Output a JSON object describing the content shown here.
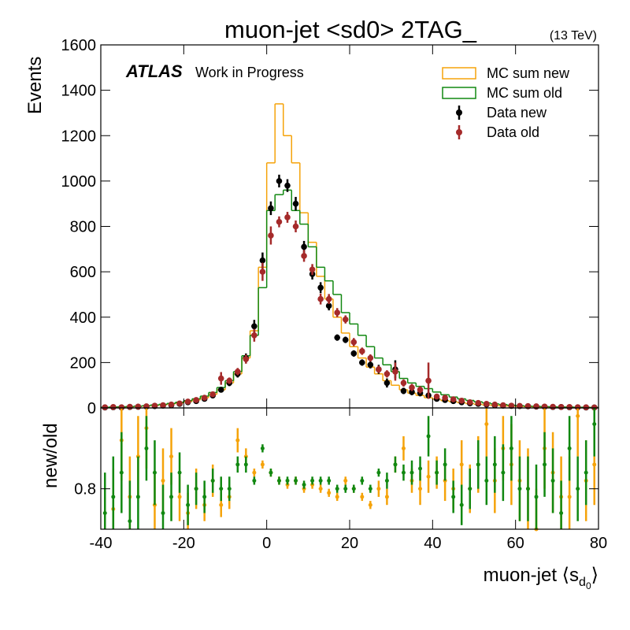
{
  "chart_data": {
    "type": "hist_ratio",
    "title": "muon-jet <sd0> 2TAG_",
    "energy": "(13 TeV)",
    "atlas": "ATLAS",
    "atlas_sub": "Work in Progress",
    "y_label": "Events",
    "ratio_label": "new/old",
    "x_label_parts": [
      "muon-jet ⟨s",
      "d",
      "0",
      "⟩"
    ],
    "bins": [
      -40,
      -38,
      -36,
      -34,
      -32,
      -30,
      -28,
      -26,
      -24,
      -22,
      -20,
      -18,
      -16,
      -14,
      -12,
      -10,
      -8,
      -6,
      -4,
      -2,
      0,
      2,
      4,
      6,
      8,
      10,
      12,
      14,
      16,
      18,
      20,
      22,
      24,
      26,
      28,
      30,
      32,
      34,
      36,
      38,
      40,
      42,
      44,
      46,
      48,
      50,
      52,
      54,
      56,
      58,
      60,
      62,
      64,
      66,
      68,
      70,
      72,
      74,
      76,
      78,
      80
    ],
    "xlim": [
      -40,
      80
    ],
    "xticks": [
      -40,
      -20,
      0,
      20,
      40,
      60,
      80
    ],
    "ylim": [
      0,
      1600
    ],
    "yticks": [
      0,
      200,
      400,
      600,
      800,
      1000,
      1200,
      1400,
      1600
    ],
    "ratio_ylim": [
      0.7,
      1.0
    ],
    "ratio_yticks": [
      0.8
    ],
    "hists": [
      {
        "name": "MC sum new",
        "color": "#f5a30a",
        "values": [
          2,
          3,
          4,
          5,
          7,
          9,
          11,
          14,
          18,
          22,
          28,
          35,
          45,
          60,
          80,
          110,
          150,
          220,
          340,
          620,
          1080,
          1340,
          1200,
          1080,
          860,
          730,
          580,
          480,
          400,
          330,
          270,
          220,
          180,
          150,
          120,
          100,
          80,
          65,
          55,
          45,
          38,
          32,
          27,
          23,
          19,
          16,
          13,
          11,
          9,
          8,
          7,
          6,
          5,
          4,
          4,
          3,
          3,
          2,
          2,
          2
        ]
      },
      {
        "name": "MC sum old",
        "color": "#118811",
        "values": [
          3,
          4,
          5,
          6,
          8,
          10,
          13,
          16,
          20,
          25,
          32,
          40,
          52,
          68,
          90,
          120,
          160,
          230,
          320,
          530,
          870,
          940,
          960,
          870,
          810,
          710,
          620,
          560,
          500,
          420,
          370,
          320,
          270,
          220,
          190,
          160,
          130,
          110,
          95,
          85,
          70,
          58,
          48,
          40,
          33,
          27,
          22,
          18,
          15,
          12,
          10,
          8,
          7,
          6,
          5,
          4,
          4,
          3,
          3,
          2
        ]
      }
    ],
    "points": [
      {
        "name": "Data new",
        "color": "#000000",
        "values": [
          2,
          3,
          2,
          4,
          5,
          6,
          8,
          10,
          12,
          18,
          25,
          30,
          40,
          55,
          80,
          110,
          150,
          220,
          360,
          650,
          880,
          1000,
          980,
          900,
          710,
          590,
          530,
          450,
          310,
          300,
          240,
          200,
          190,
          170,
          110,
          170,
          75,
          70,
          65,
          55,
          40,
          35,
          30,
          25,
          20,
          18,
          15,
          12,
          10,
          9,
          8,
          7,
          6,
          5,
          4,
          4,
          3,
          3,
          2,
          2
        ],
        "errors": [
          2,
          2,
          2,
          2,
          3,
          3,
          4,
          4,
          5,
          6,
          7,
          8,
          9,
          10,
          12,
          14,
          16,
          20,
          28,
          35,
          30,
          28,
          28,
          30,
          26,
          24,
          24,
          20,
          14,
          14,
          14,
          14,
          16,
          20,
          20,
          40,
          14,
          14,
          14,
          14,
          10,
          10,
          9,
          8,
          7,
          7,
          6,
          6,
          5,
          5,
          4,
          4,
          4,
          3,
          3,
          3,
          3,
          2,
          2,
          2
        ]
      },
      {
        "name": "Data old",
        "color": "#a52a2a",
        "values": [
          3,
          4,
          3,
          5,
          6,
          7,
          10,
          12,
          15,
          20,
          28,
          35,
          45,
          60,
          130,
          120,
          160,
          215,
          320,
          600,
          760,
          820,
          840,
          800,
          670,
          610,
          480,
          480,
          420,
          390,
          290,
          250,
          220,
          170,
          150,
          160,
          110,
          90,
          80,
          120,
          50,
          45,
          38,
          32,
          25,
          22,
          18,
          15,
          12,
          10,
          9,
          8,
          7,
          6,
          5,
          4,
          4,
          3,
          3,
          2
        ],
        "errors": [
          2,
          2,
          2,
          2,
          3,
          3,
          4,
          4,
          5,
          6,
          7,
          8,
          9,
          10,
          28,
          14,
          16,
          20,
          28,
          40,
          40,
          24,
          24,
          26,
          26,
          24,
          24,
          22,
          20,
          18,
          18,
          16,
          16,
          16,
          16,
          40,
          16,
          16,
          16,
          80,
          10,
          10,
          9,
          8,
          7,
          7,
          6,
          6,
          5,
          5,
          4,
          4,
          4,
          3,
          3,
          3,
          3,
          2,
          2,
          2
        ]
      }
    ],
    "ratio_series": [
      {
        "color": "#f5a30a",
        "values": [
          0.68,
          0.75,
          0.92,
          0.78,
          0.88,
          0.95,
          0.76,
          0.82,
          0.88,
          0.78,
          0.74,
          0.8,
          0.76,
          0.82,
          0.76,
          0.78,
          0.92,
          0.88,
          0.84,
          0.86,
          0.84,
          0.82,
          0.81,
          0.82,
          0.8,
          0.81,
          0.8,
          0.79,
          0.78,
          0.82,
          0.8,
          0.78,
          0.76,
          0.8,
          0.78,
          0.86,
          0.9,
          0.82,
          0.8,
          0.83,
          0.84,
          0.82,
          0.8,
          0.86,
          0.8,
          0.86,
          0.96,
          0.82,
          0.9,
          0.86,
          0.82,
          0.8,
          0.7,
          0.9,
          0.84,
          0.78,
          0.78,
          0.98,
          0.82,
          0.86
        ],
        "errors": [
          0.1,
          0.1,
          0.1,
          0.1,
          0.1,
          0.1,
          0.08,
          0.08,
          0.07,
          0.06,
          0.05,
          0.05,
          0.04,
          0.04,
          0.03,
          0.03,
          0.03,
          0.02,
          0.01,
          0.01,
          0.01,
          0.01,
          0.01,
          0.01,
          0.01,
          0.01,
          0.01,
          0.01,
          0.01,
          0.01,
          0.01,
          0.01,
          0.01,
          0.02,
          0.02,
          0.02,
          0.03,
          0.03,
          0.04,
          0.04,
          0.04,
          0.05,
          0.05,
          0.06,
          0.06,
          0.07,
          0.08,
          0.08,
          0.08,
          0.1,
          0.1,
          0.1,
          0.1,
          0.1,
          0.1,
          0.1,
          0.1,
          0.1,
          0.1,
          0.1
        ]
      },
      {
        "color": "#118811",
        "values": [
          0.74,
          0.78,
          0.84,
          0.72,
          0.78,
          0.9,
          0.84,
          0.74,
          0.78,
          0.84,
          0.76,
          0.8,
          0.78,
          0.82,
          0.8,
          0.8,
          0.86,
          0.86,
          0.82,
          0.9,
          0.84,
          0.82,
          0.82,
          0.82,
          0.81,
          0.82,
          0.82,
          0.82,
          0.8,
          0.8,
          0.8,
          0.82,
          0.8,
          0.84,
          0.82,
          0.86,
          0.84,
          0.84,
          0.85,
          0.93,
          0.84,
          0.86,
          0.78,
          0.76,
          0.8,
          0.86,
          0.82,
          0.86,
          0.84,
          0.9,
          0.8,
          0.8,
          0.78,
          0.86,
          0.82,
          0.74,
          0.9,
          0.8,
          0.84,
          0.96
        ],
        "errors": [
          0.1,
          0.1,
          0.1,
          0.1,
          0.1,
          0.08,
          0.08,
          0.07,
          0.06,
          0.05,
          0.05,
          0.04,
          0.04,
          0.03,
          0.03,
          0.03,
          0.02,
          0.02,
          0.01,
          0.01,
          0.01,
          0.01,
          0.01,
          0.01,
          0.01,
          0.01,
          0.01,
          0.01,
          0.01,
          0.01,
          0.01,
          0.01,
          0.01,
          0.01,
          0.02,
          0.02,
          0.02,
          0.03,
          0.03,
          0.05,
          0.03,
          0.04,
          0.04,
          0.05,
          0.05,
          0.06,
          0.06,
          0.07,
          0.07,
          0.08,
          0.08,
          0.08,
          0.08,
          0.08,
          0.08,
          0.08,
          0.08,
          0.08,
          0.08,
          0.08
        ]
      }
    ]
  }
}
